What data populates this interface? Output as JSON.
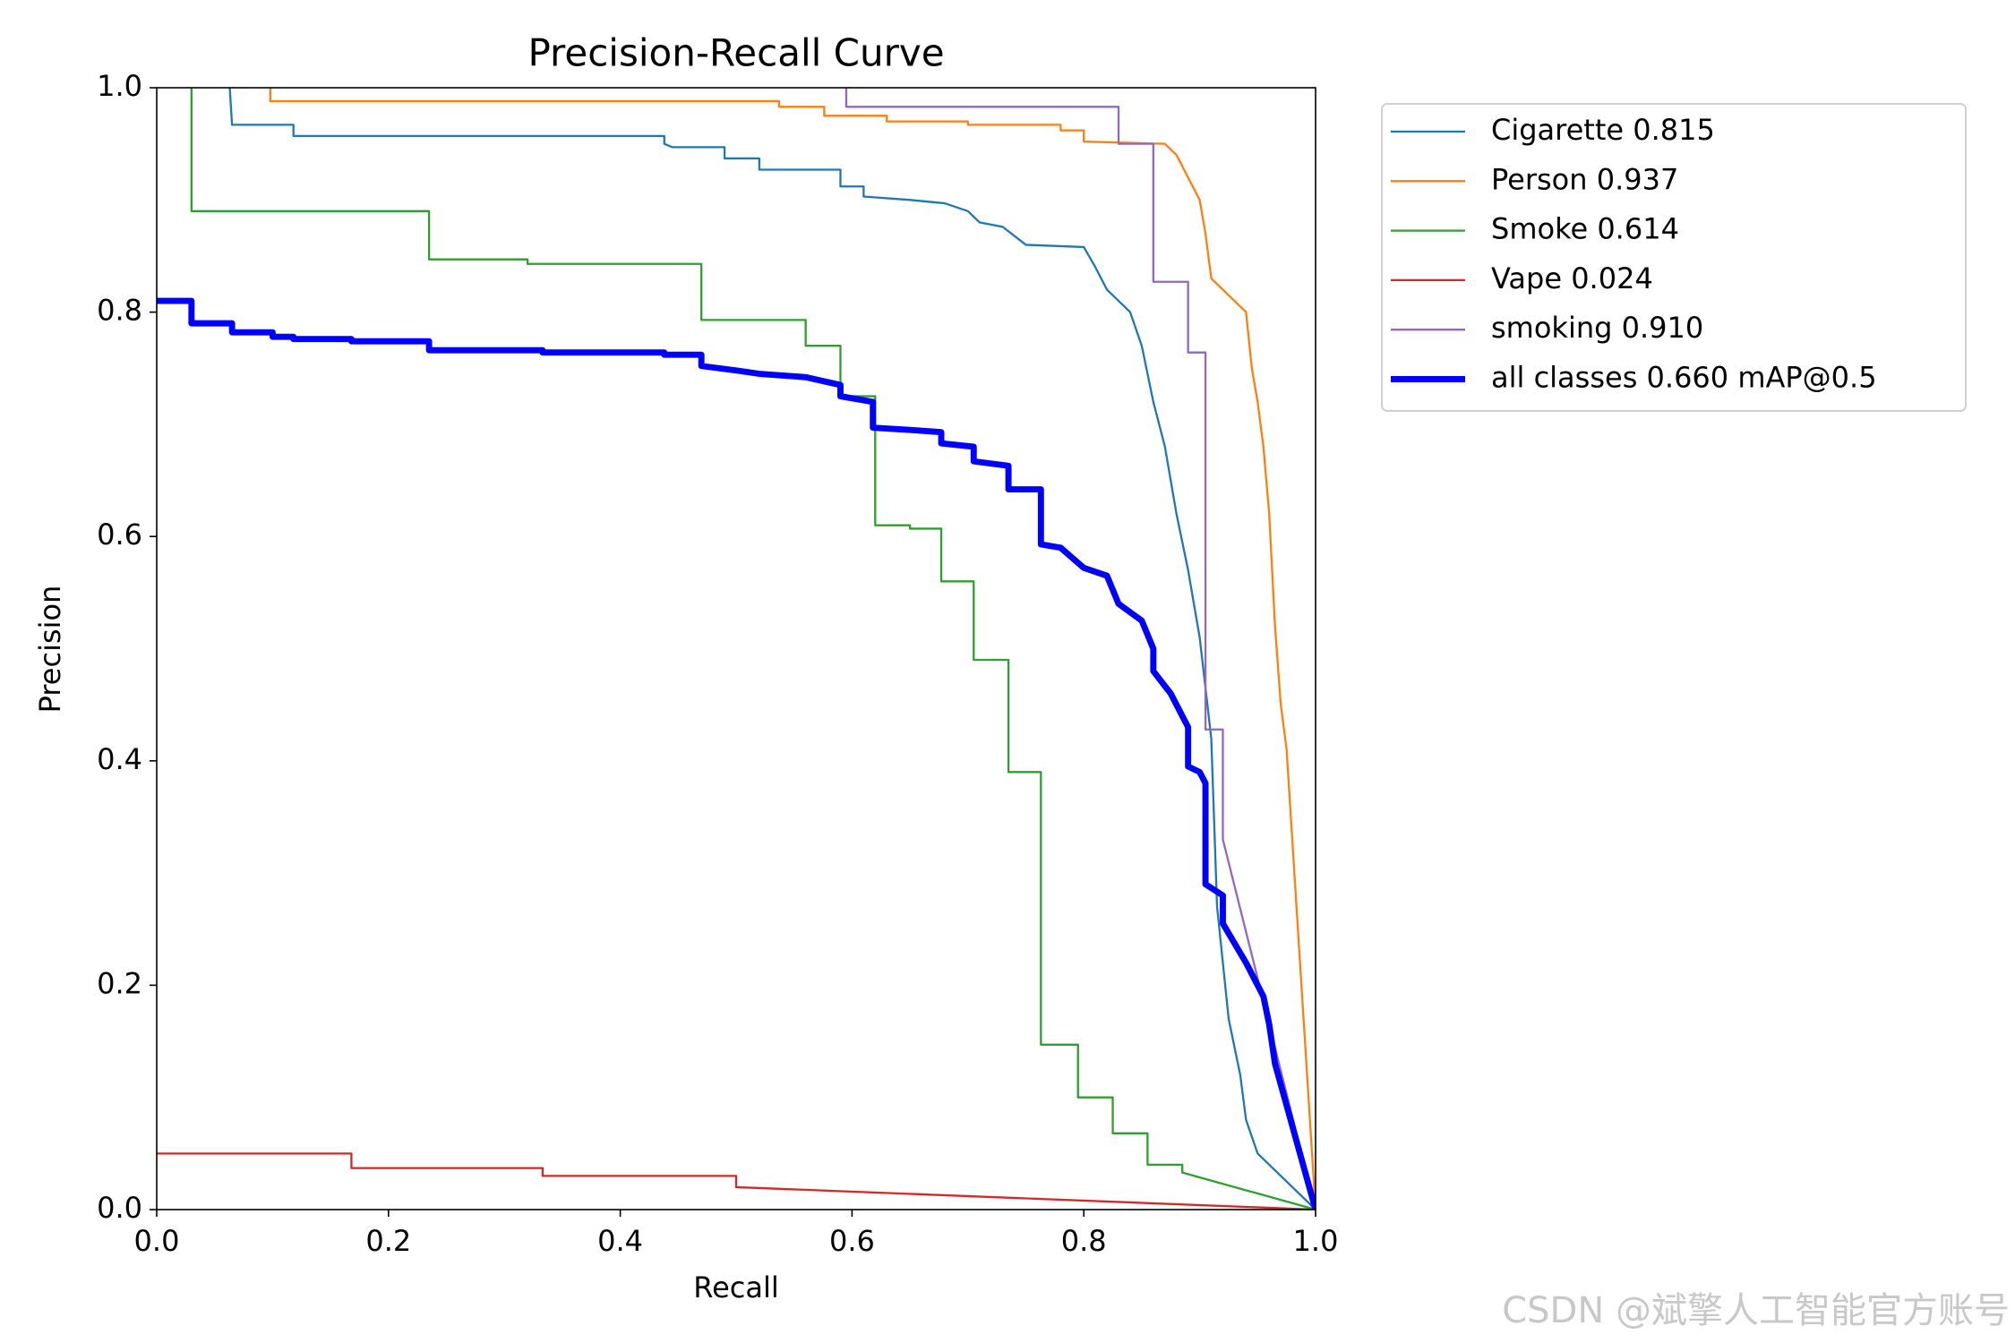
{
  "chart_data": {
    "type": "line",
    "title": "Precision-Recall Curve",
    "x_label": "Recall",
    "y_label": "Precision",
    "xlim": [
      0,
      1
    ],
    "ylim": [
      0,
      1
    ],
    "xticks": [
      {
        "value": 0,
        "label": "0.0"
      },
      0.2,
      0.4,
      0.6,
      0.8,
      {
        "value": 1,
        "label": "1.0"
      }
    ],
    "yticks": [
      {
        "value": 0,
        "label": "0.0"
      },
      0.2,
      0.4,
      0.6,
      0.8,
      {
        "value": 1,
        "label": "1.0"
      }
    ],
    "grid": false,
    "legend": "outside upper right",
    "series": [
      {
        "name": "Cigarette 0.815",
        "color": "#1f77b4",
        "width": 1,
        "x": [
          0.063,
          0.065,
          0.118,
          0.118,
          0.438,
          0.438,
          0.445,
          0.49,
          0.49,
          0.52,
          0.52,
          0.59,
          0.59,
          0.61,
          0.61,
          0.65,
          0.68,
          0.7,
          0.71,
          0.73,
          0.75,
          0.8,
          0.81,
          0.82,
          0.84,
          0.85,
          0.86,
          0.87,
          0.88,
          0.89,
          0.9,
          0.91,
          0.915,
          0.925,
          0.935,
          0.94,
          0.95,
          1.0
        ],
        "values": [
          1.0,
          0.967,
          0.967,
          0.957,
          0.957,
          0.95,
          0.947,
          0.947,
          0.937,
          0.937,
          0.927,
          0.927,
          0.912,
          0.912,
          0.903,
          0.9,
          0.897,
          0.89,
          0.88,
          0.876,
          0.86,
          0.858,
          0.84,
          0.82,
          0.8,
          0.77,
          0.72,
          0.68,
          0.62,
          0.57,
          0.51,
          0.42,
          0.27,
          0.17,
          0.12,
          0.08,
          0.05,
          0.0
        ]
      },
      {
        "name": "Person 0.937",
        "color": "#ff7f0e",
        "width": 1,
        "x": [
          0.098,
          0.098,
          0.537,
          0.537,
          0.576,
          0.576,
          0.63,
          0.63,
          0.7,
          0.7,
          0.78,
          0.78,
          0.8,
          0.8,
          0.87,
          0.88,
          0.89,
          0.9,
          0.905,
          0.91,
          0.93,
          0.94,
          0.945,
          0.95,
          0.955,
          0.96,
          0.965,
          0.97,
          0.975,
          1.0
        ],
        "values": [
          1.0,
          0.988,
          0.988,
          0.983,
          0.983,
          0.975,
          0.975,
          0.97,
          0.97,
          0.967,
          0.967,
          0.962,
          0.962,
          0.952,
          0.95,
          0.94,
          0.92,
          0.9,
          0.87,
          0.83,
          0.81,
          0.8,
          0.75,
          0.72,
          0.68,
          0.62,
          0.52,
          0.45,
          0.41,
          0.0
        ]
      },
      {
        "name": "Smoke 0.614",
        "color": "#2ca02c",
        "width": 1,
        "x": [
          0.03,
          0.03,
          0.235,
          0.235,
          0.32,
          0.32,
          0.47,
          0.47,
          0.56,
          0.56,
          0.59,
          0.59,
          0.62,
          0.62,
          0.65,
          0.65,
          0.677,
          0.677,
          0.705,
          0.705,
          0.735,
          0.735,
          0.763,
          0.763,
          0.795,
          0.795,
          0.825,
          0.825,
          0.855,
          0.855,
          0.885,
          0.885,
          1.0
        ],
        "values": [
          1.0,
          0.89,
          0.89,
          0.847,
          0.847,
          0.843,
          0.843,
          0.793,
          0.793,
          0.77,
          0.77,
          0.725,
          0.725,
          0.61,
          0.61,
          0.607,
          0.607,
          0.56,
          0.56,
          0.49,
          0.49,
          0.39,
          0.39,
          0.147,
          0.147,
          0.1,
          0.1,
          0.068,
          0.068,
          0.04,
          0.04,
          0.033,
          0.0
        ]
      },
      {
        "name": "Vape 0.024",
        "color": "#d62728",
        "width": 1,
        "x": [
          0,
          0.168,
          0.168,
          0.333,
          0.333,
          0.5,
          0.5,
          1.0
        ],
        "values": [
          0.05,
          0.05,
          0.037,
          0.037,
          0.03,
          0.03,
          0.02,
          0.0
        ]
      },
      {
        "name": "smoking 0.910",
        "color": "#9467bd",
        "width": 1,
        "x": [
          0.595,
          0.595,
          0.83,
          0.83,
          0.86,
          0.86,
          0.89,
          0.89,
          0.905,
          0.905,
          0.92,
          0.92,
          1.0
        ],
        "values": [
          1.0,
          0.983,
          0.983,
          0.95,
          0.95,
          0.827,
          0.827,
          0.764,
          0.764,
          0.428,
          0.428,
          0.33,
          0.0
        ]
      },
      {
        "name": "all classes 0.660 mAP@0.5",
        "color": "#0000ff",
        "width": 3,
        "x": [
          0,
          0.03,
          0.03,
          0.065,
          0.065,
          0.1,
          0.1,
          0.118,
          0.118,
          0.168,
          0.168,
          0.235,
          0.235,
          0.333,
          0.333,
          0.438,
          0.438,
          0.47,
          0.47,
          0.5,
          0.52,
          0.56,
          0.59,
          0.59,
          0.618,
          0.618,
          0.65,
          0.677,
          0.677,
          0.705,
          0.705,
          0.735,
          0.735,
          0.763,
          0.763,
          0.78,
          0.8,
          0.82,
          0.83,
          0.85,
          0.86,
          0.86,
          0.875,
          0.885,
          0.89,
          0.89,
          0.9,
          0.905,
          0.905,
          0.92,
          0.92,
          0.94,
          0.955,
          0.96,
          0.965,
          1.0
        ],
        "values": [
          0.81,
          0.81,
          0.79,
          0.79,
          0.782,
          0.782,
          0.778,
          0.778,
          0.776,
          0.776,
          0.774,
          0.774,
          0.766,
          0.766,
          0.764,
          0.764,
          0.762,
          0.762,
          0.752,
          0.748,
          0.745,
          0.742,
          0.735,
          0.725,
          0.72,
          0.697,
          0.695,
          0.693,
          0.683,
          0.68,
          0.667,
          0.663,
          0.642,
          0.642,
          0.593,
          0.59,
          0.572,
          0.565,
          0.54,
          0.525,
          0.5,
          0.48,
          0.46,
          0.44,
          0.43,
          0.395,
          0.39,
          0.38,
          0.29,
          0.28,
          0.255,
          0.22,
          0.19,
          0.165,
          0.13,
          0.0
        ]
      }
    ],
    "watermark": "CSDN @斌擎人工智能官方账号"
  }
}
